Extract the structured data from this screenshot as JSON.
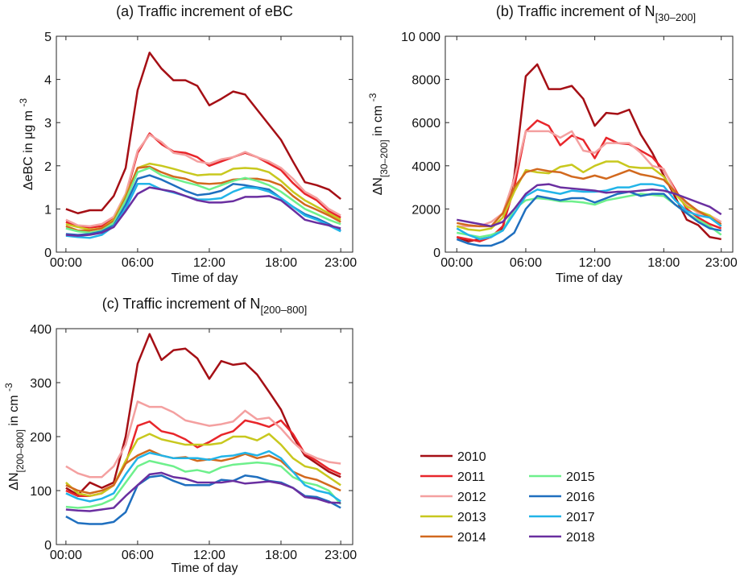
{
  "chart_data": [
    {
      "type": "line",
      "title": "(a) Traffic increment of eBC",
      "xlabel": "Time of day",
      "ylabel": [
        {
          "text": "ΔeBC in μg m "
        },
        {
          "text": "-3",
          "pos": "sup"
        }
      ],
      "x": [
        0,
        1,
        2,
        3,
        4,
        5,
        6,
        7,
        8,
        9,
        10,
        11,
        12,
        13,
        14,
        15,
        16,
        17,
        18,
        19,
        20,
        21,
        22,
        23
      ],
      "xlim": [
        -0.8,
        24
      ],
      "xticks": [
        {
          "value": 0,
          "label": "00:00"
        },
        {
          "value": 6,
          "label": "06:00"
        },
        {
          "value": 12,
          "label": "12:00"
        },
        {
          "value": 18,
          "label": "18:00"
        },
        {
          "value": 23,
          "label": "23:00"
        }
      ],
      "ylim": [
        0,
        5
      ],
      "yticks": [
        0,
        1,
        2,
        3,
        4,
        5
      ],
      "series": [
        {
          "name": "2010",
          "color": "#a50f15",
          "values": [
            1.0,
            0.9,
            0.97,
            0.97,
            1.3,
            1.95,
            3.75,
            4.62,
            4.25,
            3.98,
            3.98,
            3.85,
            3.4,
            3.55,
            3.72,
            3.65,
            3.3,
            2.95,
            2.6,
            2.1,
            1.62,
            1.55,
            1.45,
            1.23
          ]
        },
        {
          "name": "2011",
          "color": "#e8262b",
          "values": [
            0.7,
            0.6,
            0.57,
            0.6,
            0.78,
            1.3,
            2.3,
            2.75,
            2.5,
            2.33,
            2.3,
            2.2,
            2.0,
            2.1,
            2.2,
            2.3,
            2.2,
            2.05,
            1.9,
            1.6,
            1.35,
            1.2,
            0.95,
            0.8
          ]
        },
        {
          "name": "2012",
          "color": "#f4a0a0",
          "values": [
            0.75,
            0.62,
            0.6,
            0.65,
            0.82,
            1.35,
            2.35,
            2.72,
            2.55,
            2.3,
            2.25,
            2.1,
            2.05,
            2.15,
            2.2,
            2.32,
            2.2,
            2.1,
            1.95,
            1.7,
            1.4,
            1.25,
            1.0,
            0.85
          ]
        },
        {
          "name": "2013",
          "color": "#c8c81e",
          "values": [
            0.65,
            0.58,
            0.52,
            0.55,
            0.75,
            1.3,
            1.95,
            2.05,
            2.0,
            1.93,
            1.85,
            1.78,
            1.8,
            1.8,
            1.93,
            1.95,
            1.93,
            1.85,
            1.65,
            1.4,
            1.2,
            1.05,
            0.9,
            0.75
          ]
        },
        {
          "name": "2014",
          "color": "#d2691e",
          "values": [
            0.6,
            0.5,
            0.5,
            0.55,
            0.72,
            1.25,
            1.95,
            1.98,
            1.85,
            1.75,
            1.7,
            1.6,
            1.58,
            1.6,
            1.68,
            1.7,
            1.7,
            1.65,
            1.55,
            1.3,
            1.1,
            0.98,
            0.85,
            0.7
          ]
        },
        {
          "name": "2015",
          "color": "#6ef08c",
          "values": [
            0.55,
            0.48,
            0.45,
            0.5,
            0.68,
            1.2,
            1.85,
            1.95,
            1.78,
            1.7,
            1.62,
            1.55,
            1.45,
            1.55,
            1.65,
            1.72,
            1.65,
            1.55,
            1.4,
            1.2,
            1.0,
            0.88,
            0.75,
            0.65
          ]
        },
        {
          "name": "2016",
          "color": "#1f6fbf",
          "values": [
            0.42,
            0.4,
            0.42,
            0.48,
            0.62,
            1.1,
            1.7,
            1.78,
            1.68,
            1.55,
            1.42,
            1.32,
            1.35,
            1.42,
            1.58,
            1.55,
            1.5,
            1.45,
            1.25,
            1.05,
            0.88,
            0.78,
            0.65,
            0.5
          ]
        },
        {
          "name": "2017",
          "color": "#22b4e8",
          "values": [
            0.38,
            0.35,
            0.33,
            0.4,
            0.6,
            1.0,
            1.58,
            1.58,
            1.45,
            1.38,
            1.3,
            1.22,
            1.22,
            1.25,
            1.4,
            1.5,
            1.48,
            1.4,
            1.25,
            1.05,
            0.85,
            0.75,
            0.62,
            0.48
          ]
        },
        {
          "name": "2018",
          "color": "#6a2fa0",
          "values": [
            0.4,
            0.38,
            0.4,
            0.45,
            0.58,
            0.95,
            1.35,
            1.5,
            1.45,
            1.4,
            1.3,
            1.2,
            1.15,
            1.15,
            1.18,
            1.28,
            1.28,
            1.3,
            1.2,
            0.98,
            0.75,
            0.68,
            0.62,
            0.55
          ]
        }
      ]
    },
    {
      "type": "line",
      "title": "(b) Traffic increment of N",
      "title_sub": "[30–200]",
      "xlabel": "Time of day",
      "ylabel": [
        {
          "text": "ΔN"
        },
        {
          "text": "[30–200]",
          "pos": "sub"
        },
        {
          "text": " in cm "
        },
        {
          "text": "-3",
          "pos": "sup"
        }
      ],
      "x": [
        0,
        1,
        2,
        3,
        4,
        5,
        6,
        7,
        8,
        9,
        10,
        11,
        12,
        13,
        14,
        15,
        16,
        17,
        18,
        19,
        20,
        21,
        22,
        23
      ],
      "xlim": [
        -1,
        24
      ],
      "xticks": [
        {
          "value": 0,
          "label": "00:00"
        },
        {
          "value": 6,
          "label": "06:00"
        },
        {
          "value": 12,
          "label": "12:00"
        },
        {
          "value": 18,
          "label": "18:00"
        },
        {
          "value": 23,
          "label": "23:00"
        }
      ],
      "ylim": [
        0,
        10000
      ],
      "yticks": [
        0,
        2000,
        4000,
        6000,
        8000,
        {
          "value": 10000,
          "label": "10 000"
        }
      ],
      "series": [
        {
          "name": "2010",
          "color": "#a50f15",
          "values": [
            700,
            500,
            600,
            700,
            1100,
            3500,
            8150,
            8700,
            7550,
            7550,
            7700,
            7100,
            5850,
            6450,
            6400,
            6600,
            5450,
            4600,
            3550,
            2550,
            1500,
            1250,
            700,
            600
          ]
        },
        {
          "name": "2011",
          "color": "#e8262b",
          "values": [
            700,
            600,
            500,
            700,
            1200,
            3000,
            5600,
            6100,
            5850,
            4950,
            5400,
            5200,
            4350,
            5300,
            5050,
            5000,
            4700,
            4400,
            3800,
            2900,
            2000,
            1600,
            1300,
            1100
          ]
        },
        {
          "name": "2012",
          "color": "#f4a0a0",
          "values": [
            1200,
            1200,
            1200,
            1400,
            1800,
            3400,
            5600,
            5600,
            5600,
            5300,
            5600,
            4700,
            4600,
            5050,
            5050,
            5050,
            4600,
            4000,
            3850,
            2800,
            2200,
            1800,
            1700,
            1400
          ]
        },
        {
          "name": "2013",
          "color": "#c8c81e",
          "values": [
            1200,
            1050,
            1000,
            1100,
            1600,
            2800,
            3800,
            3700,
            3650,
            3950,
            4050,
            3700,
            4000,
            4200,
            4200,
            3950,
            3900,
            3900,
            3500,
            2700,
            2100,
            1900,
            1700,
            1200
          ]
        },
        {
          "name": "2014",
          "color": "#d2691e",
          "values": [
            1350,
            1250,
            1200,
            1200,
            1800,
            3000,
            3700,
            3850,
            3750,
            3700,
            3500,
            3400,
            3550,
            3400,
            3600,
            3800,
            3600,
            3500,
            3350,
            2800,
            2300,
            1900,
            1600,
            1300
          ]
        },
        {
          "name": "2015",
          "color": "#6ef08c",
          "values": [
            900,
            800,
            700,
            800,
            1000,
            2000,
            2400,
            2500,
            2450,
            2350,
            2350,
            2300,
            2200,
            2400,
            2500,
            2600,
            2700,
            2650,
            2600,
            2200,
            1800,
            1500,
            1200,
            800
          ]
        },
        {
          "name": "2016",
          "color": "#1f6fbf",
          "values": [
            600,
            400,
            300,
            300,
            500,
            900,
            2000,
            2600,
            2500,
            2400,
            2500,
            2500,
            2300,
            2500,
            2700,
            2800,
            2600,
            2700,
            2700,
            2200,
            1800,
            1400,
            1100,
            1000
          ]
        },
        {
          "name": "2017",
          "color": "#22b4e8",
          "values": [
            1100,
            800,
            600,
            700,
            1000,
            1800,
            2600,
            2900,
            2800,
            2700,
            2850,
            2800,
            2800,
            2850,
            3000,
            3000,
            3150,
            3150,
            3050,
            2400,
            1900,
            1700,
            1600,
            1200
          ]
        },
        {
          "name": "2018",
          "color": "#6a2fa0",
          "values": [
            1500,
            1400,
            1300,
            1200,
            1400,
            2000,
            2700,
            3100,
            3150,
            3000,
            2950,
            2900,
            2850,
            2750,
            2800,
            2800,
            2850,
            2900,
            2850,
            2700,
            2500,
            2300,
            2100,
            1750
          ]
        }
      ]
    },
    {
      "type": "line",
      "title": "(c) Traffic increment of N",
      "title_sub": "[200–800]",
      "xlabel": "Time of day",
      "ylabel": [
        {
          "text": "ΔN"
        },
        {
          "text": "[200–800]",
          "pos": "sub"
        },
        {
          "text": " in cm "
        },
        {
          "text": "-3",
          "pos": "sup"
        }
      ],
      "x": [
        0,
        1,
        2,
        3,
        4,
        5,
        6,
        7,
        8,
        9,
        10,
        11,
        12,
        13,
        14,
        15,
        16,
        17,
        18,
        19,
        20,
        21,
        22,
        23
      ],
      "xlim": [
        -0.8,
        24
      ],
      "xticks": [
        {
          "value": 0,
          "label": "00:00"
        },
        {
          "value": 6,
          "label": "06:00"
        },
        {
          "value": 12,
          "label": "12:00"
        },
        {
          "value": 18,
          "label": "18:00"
        },
        {
          "value": 23,
          "label": "23:00"
        }
      ],
      "ylim": [
        0,
        400
      ],
      "yticks": [
        0,
        100,
        200,
        300,
        400
      ],
      "legend": true,
      "series": [
        {
          "name": "2010",
          "color": "#a50f15",
          "values": [
            105,
            92,
            115,
            105,
            115,
            200,
            335,
            390,
            342,
            360,
            363,
            345,
            307,
            340,
            333,
            336,
            315,
            283,
            250,
            200,
            165,
            150,
            135,
            125
          ]
        },
        {
          "name": "2011",
          "color": "#e8262b",
          "values": [
            100,
            90,
            90,
            95,
            110,
            150,
            220,
            228,
            210,
            205,
            195,
            180,
            190,
            203,
            210,
            230,
            225,
            218,
            230,
            205,
            168,
            155,
            140,
            130
          ]
        },
        {
          "name": "2012",
          "color": "#f4a0a0",
          "values": [
            145,
            132,
            125,
            125,
            145,
            185,
            265,
            255,
            255,
            245,
            230,
            225,
            220,
            223,
            228,
            248,
            232,
            235,
            215,
            190,
            170,
            160,
            153,
            150
          ]
        },
        {
          "name": "2013",
          "color": "#c8c81e",
          "values": [
            115,
            95,
            90,
            95,
            110,
            155,
            195,
            205,
            195,
            190,
            185,
            185,
            185,
            188,
            200,
            200,
            193,
            205,
            185,
            160,
            145,
            140,
            125,
            110
          ]
        },
        {
          "name": "2014",
          "color": "#d2691e",
          "values": [
            110,
            100,
            95,
            100,
            110,
            150,
            165,
            175,
            165,
            160,
            162,
            155,
            158,
            155,
            160,
            168,
            160,
            165,
            155,
            135,
            125,
            120,
            110,
            100
          ]
        },
        {
          "name": "2015",
          "color": "#6ef08c",
          "values": [
            70,
            68,
            70,
            75,
            85,
            115,
            145,
            155,
            150,
            145,
            135,
            138,
            133,
            143,
            148,
            150,
            152,
            150,
            145,
            125,
            115,
            110,
            100,
            75
          ]
        },
        {
          "name": "2016",
          "color": "#1f6fbf",
          "values": [
            52,
            40,
            38,
            38,
            42,
            60,
            110,
            125,
            128,
            118,
            110,
            110,
            110,
            120,
            118,
            128,
            125,
            118,
            115,
            105,
            90,
            88,
            80,
            68
          ]
        },
        {
          "name": "2017",
          "color": "#22b4e8",
          "values": [
            95,
            85,
            80,
            85,
            95,
            130,
            160,
            170,
            165,
            160,
            160,
            160,
            157,
            163,
            165,
            170,
            165,
            173,
            160,
            135,
            110,
            100,
            95,
            80
          ]
        },
        {
          "name": "2018",
          "color": "#6a2fa0",
          "values": [
            65,
            63,
            62,
            65,
            68,
            90,
            110,
            130,
            133,
            125,
            122,
            115,
            115,
            115,
            118,
            113,
            115,
            117,
            113,
            105,
            88,
            85,
            78,
            77
          ]
        }
      ]
    }
  ]
}
